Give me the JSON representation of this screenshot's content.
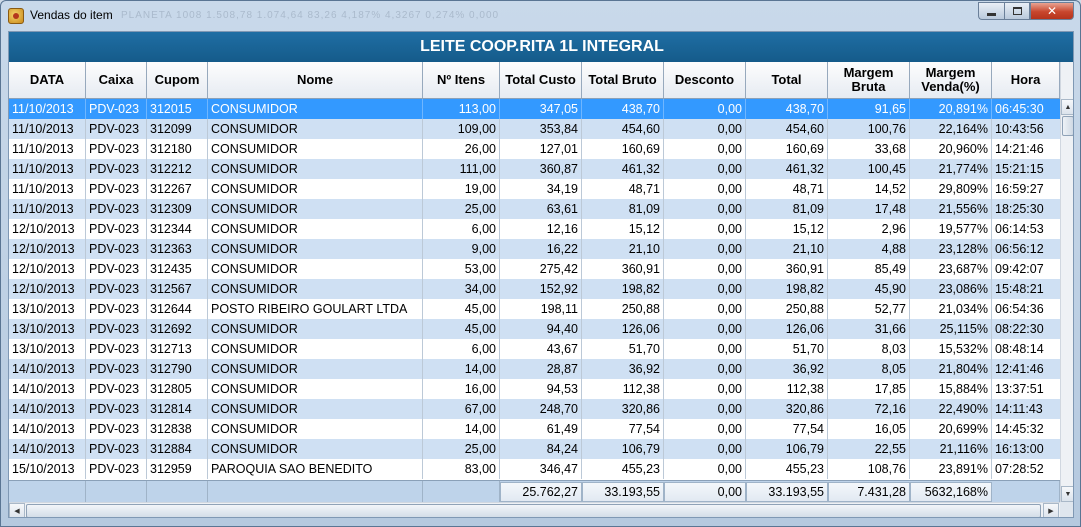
{
  "window": {
    "title": "Vendas do item",
    "ghost_text": "PLANETA       1008   1.508,78   1.074,64   83,26   4,187%   4,3267   0,274%   0,000"
  },
  "banner": {
    "title": "LEITE COOP.RITA 1L INTEGRAL"
  },
  "table": {
    "headers": [
      "DATA",
      "Caixa",
      "Cupom",
      "Nome",
      "Nº Itens",
      "Total Custo",
      "Total Bruto",
      "Desconto",
      "Total",
      "Margem Bruta",
      "Margem Venda(%)",
      "Hora"
    ],
    "selected_row": 0,
    "rows": [
      [
        "11/10/2013",
        "PDV-023",
        "312015",
        "CONSUMIDOR",
        "113,00",
        "347,05",
        "438,70",
        "0,00",
        "438,70",
        "91,65",
        "20,891%",
        "06:45:30"
      ],
      [
        "11/10/2013",
        "PDV-023",
        "312099",
        "CONSUMIDOR",
        "109,00",
        "353,84",
        "454,60",
        "0,00",
        "454,60",
        "100,76",
        "22,164%",
        "10:43:56"
      ],
      [
        "11/10/2013",
        "PDV-023",
        "312180",
        "CONSUMIDOR",
        "26,00",
        "127,01",
        "160,69",
        "0,00",
        "160,69",
        "33,68",
        "20,960%",
        "14:21:46"
      ],
      [
        "11/10/2013",
        "PDV-023",
        "312212",
        "CONSUMIDOR",
        "111,00",
        "360,87",
        "461,32",
        "0,00",
        "461,32",
        "100,45",
        "21,774%",
        "15:21:15"
      ],
      [
        "11/10/2013",
        "PDV-023",
        "312267",
        "CONSUMIDOR",
        "19,00",
        "34,19",
        "48,71",
        "0,00",
        "48,71",
        "14,52",
        "29,809%",
        "16:59:27"
      ],
      [
        "11/10/2013",
        "PDV-023",
        "312309",
        "CONSUMIDOR",
        "25,00",
        "63,61",
        "81,09",
        "0,00",
        "81,09",
        "17,48",
        "21,556%",
        "18:25:30"
      ],
      [
        "12/10/2013",
        "PDV-023",
        "312344",
        "CONSUMIDOR",
        "6,00",
        "12,16",
        "15,12",
        "0,00",
        "15,12",
        "2,96",
        "19,577%",
        "06:14:53"
      ],
      [
        "12/10/2013",
        "PDV-023",
        "312363",
        "CONSUMIDOR",
        "9,00",
        "16,22",
        "21,10",
        "0,00",
        "21,10",
        "4,88",
        "23,128%",
        "06:56:12"
      ],
      [
        "12/10/2013",
        "PDV-023",
        "312435",
        "CONSUMIDOR",
        "53,00",
        "275,42",
        "360,91",
        "0,00",
        "360,91",
        "85,49",
        "23,687%",
        "09:42:07"
      ],
      [
        "12/10/2013",
        "PDV-023",
        "312567",
        "CONSUMIDOR",
        "34,00",
        "152,92",
        "198,82",
        "0,00",
        "198,82",
        "45,90",
        "23,086%",
        "15:48:21"
      ],
      [
        "13/10/2013",
        "PDV-023",
        "312644",
        "POSTO RIBEIRO GOULART LTDA",
        "45,00",
        "198,11",
        "250,88",
        "0,00",
        "250,88",
        "52,77",
        "21,034%",
        "06:54:36"
      ],
      [
        "13/10/2013",
        "PDV-023",
        "312692",
        "CONSUMIDOR",
        "45,00",
        "94,40",
        "126,06",
        "0,00",
        "126,06",
        "31,66",
        "25,115%",
        "08:22:30"
      ],
      [
        "13/10/2013",
        "PDV-023",
        "312713",
        "CONSUMIDOR",
        "6,00",
        "43,67",
        "51,70",
        "0,00",
        "51,70",
        "8,03",
        "15,532%",
        "08:48:14"
      ],
      [
        "14/10/2013",
        "PDV-023",
        "312790",
        "CONSUMIDOR",
        "14,00",
        "28,87",
        "36,92",
        "0,00",
        "36,92",
        "8,05",
        "21,804%",
        "12:41:46"
      ],
      [
        "14/10/2013",
        "PDV-023",
        "312805",
        "CONSUMIDOR",
        "16,00",
        "94,53",
        "112,38",
        "0,00",
        "112,38",
        "17,85",
        "15,884%",
        "13:37:51"
      ],
      [
        "14/10/2013",
        "PDV-023",
        "312814",
        "CONSUMIDOR",
        "67,00",
        "248,70",
        "320,86",
        "0,00",
        "320,86",
        "72,16",
        "22,490%",
        "14:11:43"
      ],
      [
        "14/10/2013",
        "PDV-023",
        "312838",
        "CONSUMIDOR",
        "14,00",
        "61,49",
        "77,54",
        "0,00",
        "77,54",
        "16,05",
        "20,699%",
        "14:45:32"
      ],
      [
        "14/10/2013",
        "PDV-023",
        "312884",
        "CONSUMIDOR",
        "25,00",
        "84,24",
        "106,79",
        "0,00",
        "106,79",
        "22,55",
        "21,116%",
        "16:13:00"
      ],
      [
        "15/10/2013",
        "PDV-023",
        "312959",
        "PAROQUIA SAO BENEDITO",
        "83,00",
        "346,47",
        "455,23",
        "0,00",
        "455,23",
        "108,76",
        "23,891%",
        "07:28:52"
      ]
    ],
    "totals": {
      "total_custo": "25.762,27",
      "total_bruto": "33.193,55",
      "desconto": "0,00",
      "total": "33.193,55",
      "margem_bruta": "7.431,28",
      "margem_venda": "5632,168%"
    }
  },
  "colors": {
    "banner": "#1a66a0",
    "selection": "#3399ff",
    "alt_row": "#cfe0f3",
    "totals_bar": "#bed3ea"
  },
  "icons": {
    "app": "app-icon",
    "minimize": "minimize-icon",
    "maximize": "maximize-icon",
    "close": "close-icon"
  }
}
